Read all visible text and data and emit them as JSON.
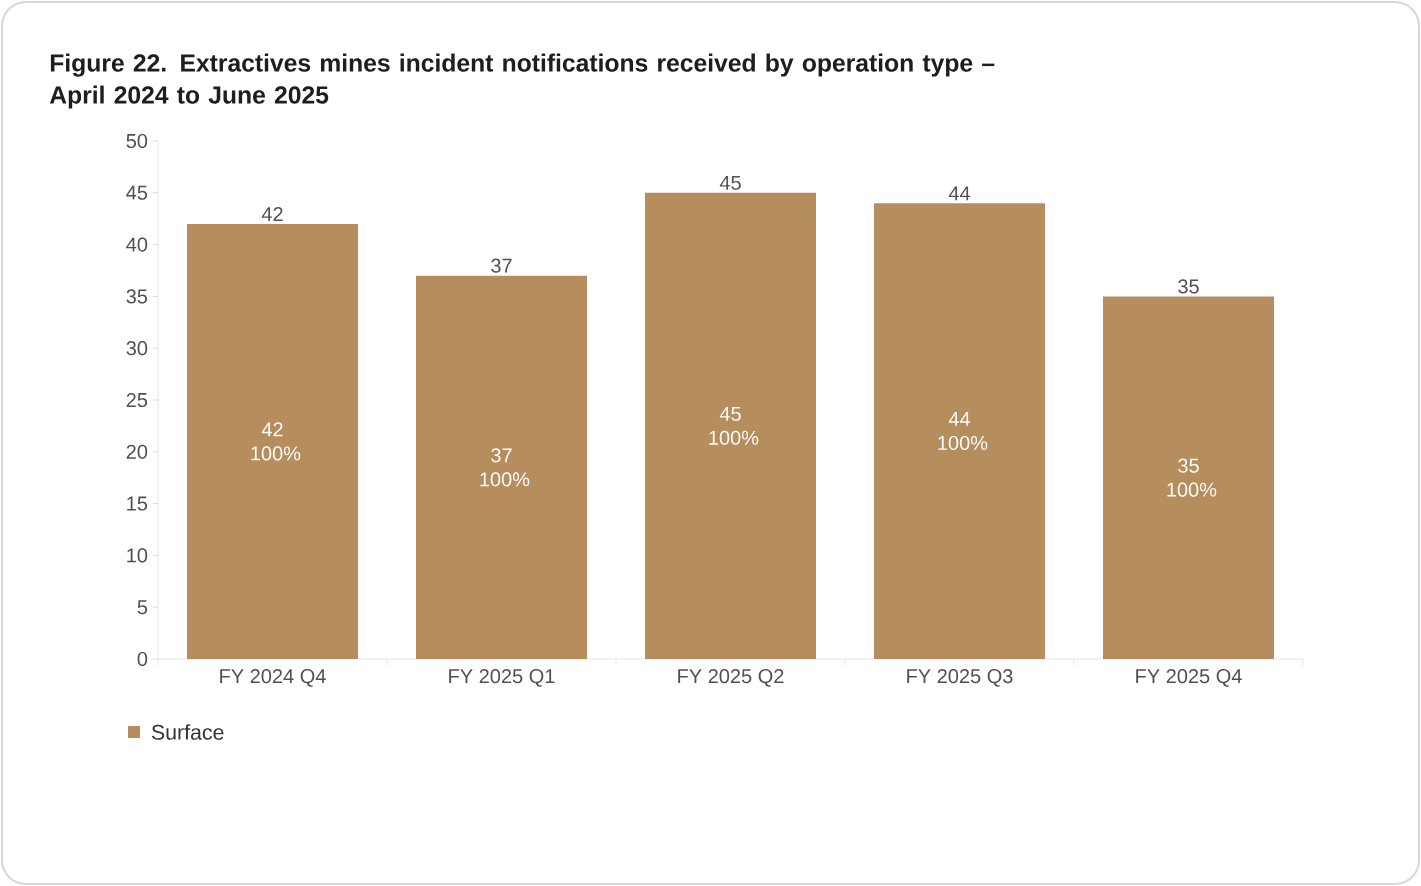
{
  "chart_data": {
    "type": "bar",
    "title": "Figure 22. Extractives mines incident notifications received by operation type – April 2024 to June 2025",
    "categories": [
      "FY 2024 Q4",
      "FY 2025 Q1",
      "FY 2025 Q2",
      "FY 2025 Q3",
      "FY 2025 Q4"
    ],
    "series": [
      {
        "name": "Surface",
        "color": "#b68d5c",
        "values": [
          42,
          37,
          45,
          44,
          35
        ],
        "value_labels": [
          "42",
          "37",
          "45",
          "44",
          "35"
        ]
      }
    ],
    "annotations": [
      "42 100%",
      "37 100%",
      "45 100%",
      "44 100%",
      "35 100%"
    ],
    "ylim": [
      0,
      50
    ],
    "yticks": [
      0,
      5,
      10,
      15,
      20,
      25,
      30,
      35,
      40,
      45,
      50
    ],
    "legend": "bottom left"
  }
}
